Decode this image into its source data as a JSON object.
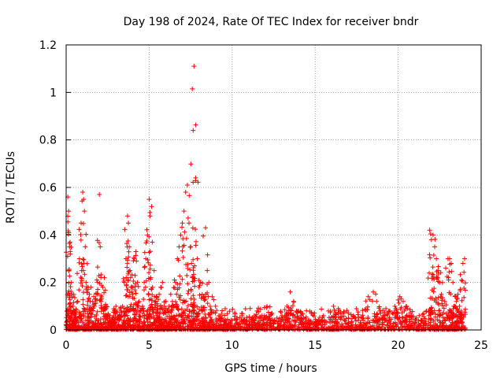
{
  "chart_data": {
    "type": "scatter",
    "title": "Day 198 of 2024, Rate Of TEC Index for receiver bndr",
    "xlabel": "GPS time / hours",
    "ylabel": "ROTI / TECUs",
    "xlim": [
      0,
      25
    ],
    "ylim": [
      0,
      1.2
    ],
    "x_ticks": [
      "0",
      "5",
      "10",
      "15",
      "20",
      "25"
    ],
    "y_ticks": [
      "0",
      "0.2",
      "0.4",
      "0.6",
      "0.8",
      "1",
      "1.2"
    ],
    "grid": true,
    "marker": "+",
    "color": "#ff0000",
    "series": [
      {
        "x": [
          0.05,
          0.1,
          0.15,
          0.2,
          0.25,
          0.3,
          0.35,
          0.4,
          0.45,
          0.5,
          0.6,
          0.7,
          0.8,
          0.9,
          1.0,
          1.05,
          1.1,
          1.15,
          1.2,
          1.3,
          1.4,
          1.5,
          1.6,
          1.7,
          1.8,
          1.9,
          2.0,
          2.05,
          2.1,
          2.2,
          2.3,
          2.4,
          2.5,
          2.6,
          2.7,
          2.8,
          2.9,
          3.0,
          3.1,
          3.2,
          3.3,
          3.4,
          3.5,
          3.6,
          3.7,
          3.75,
          3.8,
          3.85,
          3.9,
          4.0,
          4.1,
          4.2,
          4.3,
          4.4,
          4.5,
          4.6,
          4.7,
          4.8,
          4.9,
          5.0,
          5.05,
          5.1,
          5.2,
          5.3,
          5.4,
          5.5,
          5.6,
          5.7,
          5.8,
          5.9,
          6.0,
          6.1,
          6.2,
          6.3,
          6.4,
          6.5,
          6.6,
          6.7,
          6.8,
          6.9,
          7.0,
          7.1,
          7.2,
          7.3,
          7.4,
          7.5,
          7.55,
          7.6,
          7.65,
          7.7,
          7.8,
          7.9,
          8.0,
          8.1,
          8.2,
          8.3,
          8.4,
          8.5,
          8.6,
          8.8,
          9.0,
          9.2,
          9.4,
          9.6,
          9.8,
          10.0,
          10.3,
          10.6,
          10.9,
          11.2,
          11.5,
          11.8,
          12.1,
          12.4,
          12.7,
          13.0,
          13.3,
          13.5,
          13.7,
          14.0,
          14.3,
          14.6,
          14.9,
          15.2,
          15.5,
          15.8,
          16.1,
          16.4,
          16.7,
          17.0,
          17.3,
          17.6,
          17.9,
          18.2,
          18.5,
          18.7,
          18.9,
          19.2,
          19.5,
          19.8,
          20.1,
          20.3,
          20.5,
          20.8,
          21.1,
          21.4,
          21.7,
          21.9,
          22.0,
          22.1,
          22.2,
          22.3,
          22.4,
          22.5,
          22.6,
          22.8,
          23.0,
          23.1,
          23.2,
          23.3,
          23.4,
          23.5,
          23.6,
          23.7,
          23.8,
          23.9,
          24.0
        ],
        "y": [
          0.08,
          0.56,
          0.5,
          0.35,
          0.32,
          0.2,
          0.15,
          0.1,
          0.08,
          0.06,
          0.05,
          0.12,
          0.3,
          0.45,
          0.58,
          0.55,
          0.5,
          0.35,
          0.2,
          0.12,
          0.15,
          0.18,
          0.12,
          0.1,
          0.15,
          0.2,
          0.57,
          0.35,
          0.12,
          0.18,
          0.22,
          0.1,
          0.06,
          0.05,
          0.04,
          0.05,
          0.08,
          0.1,
          0.05,
          0.06,
          0.08,
          0.1,
          0.2,
          0.3,
          0.48,
          0.45,
          0.35,
          0.25,
          0.18,
          0.15,
          0.3,
          0.33,
          0.2,
          0.12,
          0.08,
          0.1,
          0.2,
          0.3,
          0.4,
          0.55,
          0.48,
          0.22,
          0.18,
          0.25,
          0.12,
          0.1,
          0.15,
          0.18,
          0.2,
          0.1,
          0.12,
          0.08,
          0.1,
          0.15,
          0.12,
          0.1,
          0.2,
          0.3,
          0.35,
          0.4,
          0.45,
          0.5,
          0.58,
          0.61,
          0.45,
          0.35,
          0.28,
          0.22,
          0.84,
          1.11,
          0.64,
          0.3,
          0.18,
          0.2,
          0.15,
          0.13,
          0.43,
          0.25,
          0.2,
          0.14,
          0.1,
          0.06,
          0.05,
          0.04,
          0.03,
          0.04,
          0.05,
          0.06,
          0.04,
          0.05,
          0.08,
          0.06,
          0.1,
          0.07,
          0.05,
          0.06,
          0.1,
          0.16,
          0.12,
          0.08,
          0.05,
          0.04,
          0.03,
          0.04,
          0.06,
          0.08,
          0.1,
          0.09,
          0.07,
          0.05,
          0.06,
          0.04,
          0.05,
          0.14,
          0.16,
          0.12,
          0.08,
          0.06,
          0.08,
          0.1,
          0.14,
          0.12,
          0.1,
          0.06,
          0.05,
          0.04,
          0.08,
          0.42,
          0.38,
          0.4,
          0.35,
          0.3,
          0.25,
          0.2,
          0.15,
          0.12,
          0.3,
          0.3,
          0.28,
          0.2,
          0.1,
          0.12,
          0.15,
          0.1,
          0.08,
          0.28,
          0.3
        ]
      }
    ],
    "note_density": "dense clusters near zero across full time range"
  }
}
